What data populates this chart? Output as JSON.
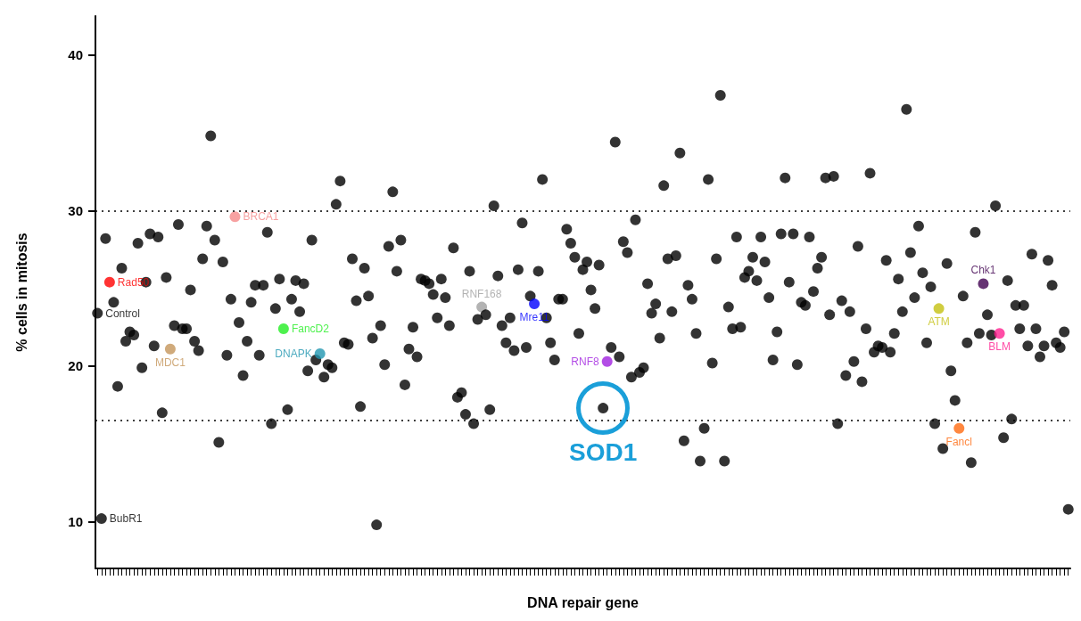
{
  "chart_data": {
    "type": "scatter",
    "xlabel": "DNA repair gene",
    "ylabel": "% cells in mitosis",
    "categories": [
      null,
      null,
      null,
      null,
      null,
      null,
      null,
      null,
      null,
      null,
      null,
      null,
      null,
      null,
      null,
      null,
      null,
      null,
      null,
      null,
      null,
      null,
      null,
      null,
      null,
      null,
      null,
      null,
      null,
      null,
      null,
      null,
      null,
      null,
      null,
      null,
      null,
      null,
      null,
      null,
      null,
      null,
      null,
      null,
      null,
      null,
      null,
      null,
      null,
      null,
      null,
      null,
      null,
      null,
      null,
      null,
      null,
      null,
      null,
      null,
      null,
      null,
      null,
      null,
      null,
      null,
      null,
      null,
      null,
      null,
      null,
      null,
      null,
      null,
      null,
      null,
      null,
      null,
      null,
      null,
      null,
      null,
      null,
      null,
      null,
      null,
      null,
      null,
      null,
      null,
      null,
      null,
      null,
      null,
      null,
      null,
      null,
      null,
      null,
      null,
      null,
      null,
      null,
      null,
      null,
      null,
      null,
      null,
      null,
      null,
      null,
      null,
      null,
      null,
      null,
      null,
      null,
      null,
      null,
      null,
      null,
      null,
      null,
      null,
      null,
      null,
      null,
      null,
      null,
      null,
      null,
      null,
      null,
      null,
      null,
      null,
      null,
      null,
      null,
      null,
      null,
      null,
      null,
      null,
      null,
      null,
      null,
      null,
      null,
      null,
      null,
      null,
      null,
      null,
      null,
      null,
      null,
      null,
      null,
      null,
      null,
      null,
      null,
      null,
      null,
      null,
      null,
      null,
      null,
      null,
      null,
      null,
      null,
      null,
      null,
      null,
      null,
      null,
      null,
      null,
      null,
      null,
      null,
      null,
      null,
      null,
      null,
      null,
      null,
      null,
      null,
      null,
      null,
      null,
      null,
      null,
      null,
      null,
      null,
      null,
      null,
      null,
      null,
      null,
      null,
      null,
      null,
      null,
      null,
      null,
      null,
      null,
      null,
      null,
      null,
      null,
      null,
      null,
      null,
      null,
      null,
      null,
      null,
      null,
      null,
      null,
      null,
      null,
      null,
      null,
      null,
      null,
      null,
      null,
      null,
      null,
      null,
      null,
      null,
      null,
      null
    ],
    "values": [
      23.4,
      10.2,
      28.2,
      25.4,
      24.1,
      18.7,
      26.3,
      21.6,
      22.2,
      22.0,
      27.9,
      19.9,
      25.4,
      28.5,
      21.3,
      28.3,
      17.0,
      25.7,
      21.1,
      22.6,
      29.1,
      22.4,
      22.4,
      24.9,
      21.6,
      21.0,
      26.9,
      29.0,
      34.8,
      28.1,
      15.1,
      26.7,
      20.7,
      24.3,
      29.6,
      22.8,
      19.4,
      21.6,
      24.1,
      25.2,
      20.7,
      25.2,
      28.6,
      16.3,
      23.7,
      25.6,
      22.4,
      17.2,
      24.3,
      25.5,
      23.5,
      25.3,
      19.7,
      28.1,
      20.4,
      20.8,
      19.3,
      20.1,
      19.9,
      30.4,
      31.9,
      21.5,
      21.4,
      26.9,
      24.2,
      17.4,
      26.3,
      24.5,
      21.8,
      9.8,
      22.6,
      20.1,
      27.7,
      31.2,
      26.1,
      28.1,
      18.8,
      21.1,
      22.5,
      20.6,
      25.6,
      25.5,
      25.3,
      24.6,
      23.1,
      25.6,
      24.4,
      22.6,
      27.6,
      18.0,
      18.3,
      16.9,
      26.1,
      16.3,
      23.0,
      23.8,
      23.3,
      17.2,
      30.3,
      25.8,
      22.6,
      21.5,
      23.1,
      21.0,
      26.2,
      29.2,
      21.2,
      24.5,
      24.0,
      26.1,
      32.0,
      23.1,
      21.5,
      20.4,
      24.3,
      24.3,
      28.8,
      27.9,
      27.0,
      22.1,
      26.2,
      26.7,
      24.9,
      23.7,
      26.5,
      17.3,
      20.3,
      21.2,
      34.4,
      20.6,
      28.0,
      27.3,
      19.3,
      29.4,
      19.6,
      19.9,
      25.3,
      23.4,
      24.0,
      21.8,
      31.6,
      26.9,
      23.5,
      27.1,
      33.7,
      15.2,
      25.2,
      24.3,
      22.1,
      13.9,
      16.0,
      32.0,
      20.2,
      26.9,
      37.4,
      13.9,
      23.8,
      22.4,
      28.3,
      22.5,
      25.7,
      26.1,
      27.0,
      25.5,
      28.3,
      26.7,
      24.4,
      20.4,
      22.2,
      28.5,
      32.1,
      25.4,
      28.5,
      20.1,
      24.1,
      23.9,
      28.3,
      24.8,
      26.3,
      27.0,
      32.1,
      23.3,
      32.2,
      16.3,
      24.2,
      19.4,
      23.5,
      20.3,
      27.7,
      19.0,
      22.4,
      32.4,
      20.9,
      21.3,
      21.2,
      26.8,
      20.9,
      22.1,
      25.6,
      23.5,
      36.5,
      27.3,
      24.4,
      29.0,
      26.0,
      21.5,
      25.1,
      16.3,
      23.7,
      14.7,
      26.6,
      19.7,
      17.8,
      16.0,
      24.5,
      21.5,
      13.8,
      28.6,
      22.1,
      25.3,
      23.3,
      22.0,
      30.3,
      22.1,
      15.4,
      25.5,
      16.6,
      23.9,
      22.4,
      23.9,
      21.3,
      27.2,
      22.4,
      20.6,
      21.3,
      26.8,
      25.2,
      21.5,
      21.2,
      22.2,
      10.8
    ],
    "colors": [
      "#000000",
      "#000000",
      "#000000",
      "#ff0000",
      "#000000",
      "#000000",
      "#000000",
      "#000000",
      "#000000",
      "#000000",
      "#000000",
      "#000000",
      "#000000",
      "#000000",
      "#000000",
      "#000000",
      "#000000",
      "#000000",
      "#c4955a",
      "#000000",
      "#000000",
      "#000000",
      "#000000",
      "#000000",
      "#000000",
      "#000000",
      "#000000",
      "#000000",
      "#000000",
      "#000000",
      "#000000",
      "#000000",
      "#000000",
      "#000000",
      "#f58a8a",
      "#000000",
      "#000000",
      "#000000",
      "#000000",
      "#000000",
      "#000000",
      "#000000",
      "#000000",
      "#000000",
      "#000000",
      "#000000",
      "#22ee22",
      "#000000",
      "#000000",
      "#000000",
      "#000000",
      "#000000",
      "#000000",
      "#000000",
      "#000000",
      "#2196b0",
      "#000000",
      "#000000",
      "#000000",
      "#000000",
      "#000000",
      "#000000",
      "#000000",
      "#000000",
      "#000000",
      "#000000",
      "#000000",
      "#000000",
      "#000000",
      "#000000",
      "#000000",
      "#000000",
      "#000000",
      "#000000",
      "#000000",
      "#000000",
      "#000000",
      "#000000",
      "#000000",
      "#000000",
      "#000000",
      "#000000",
      "#000000",
      "#000000",
      "#000000",
      "#000000",
      "#000000",
      "#000000",
      "#000000",
      "#000000",
      "#000000",
      "#000000",
      "#000000",
      "#000000",
      "#000000",
      "#a0a0a0",
      "#000000",
      "#000000",
      "#000000",
      "#000000",
      "#000000",
      "#000000",
      "#000000",
      "#000000",
      "#000000",
      "#000000",
      "#000000",
      "#000000",
      "#0000ff",
      "#000000",
      "#000000",
      "#000000",
      "#000000",
      "#000000",
      "#000000",
      "#000000",
      "#000000",
      "#000000",
      "#000000",
      "#000000",
      "#000000",
      "#000000",
      "#000000",
      "#000000",
      "#000000",
      "#000000",
      "#a020e0",
      "#000000",
      "#000000",
      "#000000",
      "#000000",
      "#000000",
      "#000000",
      "#000000",
      "#000000",
      "#000000",
      "#000000",
      "#000000",
      "#000000",
      "#000000",
      "#000000",
      "#000000",
      "#000000",
      "#000000",
      "#000000",
      "#000000",
      "#000000",
      "#000000",
      "#000000",
      "#000000",
      "#000000",
      "#000000",
      "#000000",
      "#000000",
      "#000000",
      "#000000",
      "#000000",
      "#000000",
      "#000000",
      "#000000",
      "#000000",
      "#000000",
      "#000000",
      "#000000",
      "#000000",
      "#000000",
      "#000000",
      "#000000",
      "#000000",
      "#000000",
      "#000000",
      "#000000",
      "#000000",
      "#000000",
      "#000000",
      "#000000",
      "#000000",
      "#000000",
      "#000000",
      "#000000",
      "#000000",
      "#000000",
      "#000000",
      "#000000",
      "#000000",
      "#000000",
      "#000000",
      "#000000",
      "#000000",
      "#000000",
      "#000000",
      "#000000",
      "#000000",
      "#000000",
      "#000000",
      "#000000",
      "#000000",
      "#000000",
      "#000000",
      "#000000",
      "#000000",
      "#000000",
      "#000000",
      "#000000",
      "#000000",
      "#000000",
      "#000000",
      "#000000",
      "#c4c010",
      "#000000",
      "#000000",
      "#000000",
      "#000000",
      "#ff6a10",
      "#000000",
      "#000000",
      "#000000",
      "#000000",
      "#000000",
      "#400050",
      "#000000",
      "#000000",
      "#000000",
      "#ff2090",
      "#000000",
      "#000000",
      "#000000",
      "#000000",
      "#000000",
      "#000000",
      "#000000",
      "#000000",
      "#000000",
      "#000000",
      "#000000",
      "#000000",
      "#000000",
      "#000000",
      "#000000",
      "#000000",
      "#000000"
    ],
    "value_labels": [
      "Control",
      "BubR1",
      null,
      "Rad50",
      null,
      null,
      null,
      null,
      null,
      null,
      null,
      null,
      null,
      null,
      null,
      null,
      null,
      null,
      "MDC1",
      null,
      null,
      null,
      null,
      null,
      null,
      null,
      null,
      null,
      null,
      null,
      null,
      null,
      null,
      null,
      "BRCA1",
      null,
      null,
      null,
      null,
      null,
      null,
      null,
      null,
      null,
      null,
      null,
      "FancD2",
      null,
      null,
      null,
      null,
      null,
      null,
      null,
      null,
      "DNAPK",
      null,
      null,
      null,
      null,
      null,
      null,
      null,
      null,
      null,
      null,
      null,
      null,
      null,
      null,
      null,
      null,
      null,
      null,
      null,
      null,
      null,
      null,
      null,
      null,
      null,
      null,
      null,
      null,
      null,
      null,
      null,
      null,
      null,
      null,
      null,
      null,
      null,
      null,
      null,
      "RNF168",
      null,
      null,
      null,
      null,
      null,
      null,
      null,
      null,
      null,
      null,
      null,
      null,
      "Mre11",
      null,
      null,
      null,
      null,
      null,
      null,
      null,
      null,
      null,
      null,
      null,
      null,
      null,
      null,
      null,
      null,
      null,
      "RNF8",
      null,
      null,
      null,
      null,
      null,
      null,
      null,
      null,
      null,
      null,
      null,
      null,
      null,
      null,
      null,
      null,
      null,
      null,
      null,
      null,
      null,
      null,
      null,
      null,
      null,
      null,
      null,
      null,
      null,
      null,
      null,
      null,
      null,
      null,
      null,
      null,
      null,
      null,
      null,
      null,
      null,
      null,
      null,
      null,
      null,
      null,
      null,
      null,
      null,
      null,
      null,
      null,
      null,
      null,
      null,
      null,
      null,
      null,
      null,
      null,
      null,
      null,
      null,
      null,
      null,
      null,
      null,
      null,
      null,
      null,
      null,
      null,
      null,
      null,
      null,
      null,
      null,
      null,
      null,
      null,
      null,
      "ATM",
      null,
      null,
      null,
      null,
      "Fancl",
      null,
      null,
      null,
      null,
      null,
      "Chk1",
      null,
      null,
      null,
      "BLM",
      null,
      null,
      null,
      null,
      null,
      null,
      null,
      null,
      null,
      null,
      null,
      null,
      null,
      null,
      null,
      null,
      null
    ],
    "annotations": [
      {
        "text": "SOD1",
        "y": 17.3
      }
    ],
    "ylim": [
      7,
      42.5
    ],
    "yticks": [
      10,
      20,
      30,
      40
    ],
    "ref_lines": [
      {
        "axis": "y",
        "value": 30,
        "line_style": "dotted"
      },
      {
        "axis": "y",
        "value": 16.5,
        "line_style": "dotted"
      }
    ],
    "marker": "circle",
    "tick_labels": "y"
  }
}
